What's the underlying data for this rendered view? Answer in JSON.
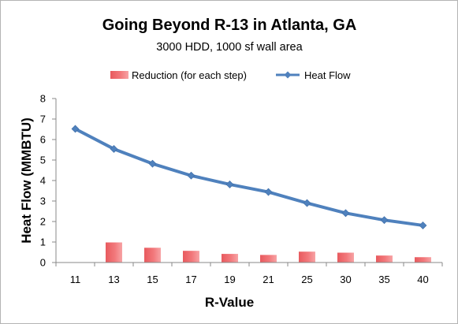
{
  "chart_data": {
    "type": "bar",
    "title": "Going Beyond R-13 in Atlanta, GA",
    "subtitle": "3000 HDD, 1000 sf wall area",
    "xlabel": "R-Value",
    "ylabel": "Heat Flow (MMBTU)",
    "categories": [
      "11",
      "13",
      "15",
      "17",
      "19",
      "21",
      "25",
      "30",
      "35",
      "40"
    ],
    "ylim": [
      0,
      8
    ],
    "yticks": [
      0,
      1,
      2,
      3,
      4,
      5,
      6,
      7,
      8
    ],
    "grid": false,
    "legend_position": "top",
    "series": [
      {
        "name": "Reduction (for each step)",
        "type": "bar",
        "color": "#f2787b",
        "values": [
          0,
          0.98,
          0.72,
          0.57,
          0.42,
          0.37,
          0.53,
          0.48,
          0.34,
          0.26
        ]
      },
      {
        "name": "Heat Flow",
        "type": "line",
        "color": "#4f81bd",
        "values": [
          6.52,
          5.54,
          4.82,
          4.24,
          3.81,
          3.44,
          2.9,
          2.41,
          2.07,
          1.81
        ]
      }
    ]
  }
}
